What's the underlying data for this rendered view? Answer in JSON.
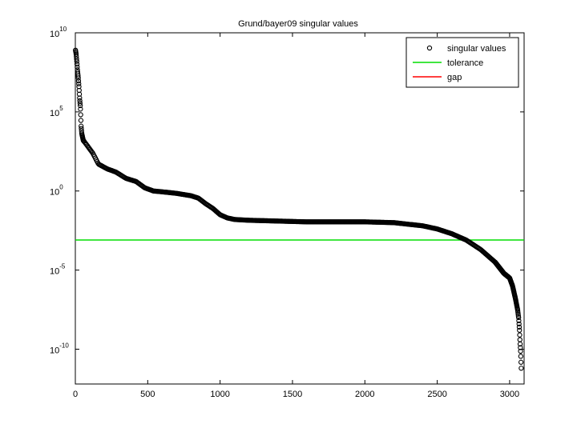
{
  "chart_data": {
    "type": "scatter",
    "title": "Grund/bayer09 singular values",
    "xlabel": "",
    "ylabel": "",
    "xlim": [
      0,
      3100
    ],
    "ylim_log10": [
      -12.2,
      10
    ],
    "y_scale": "log",
    "grid": false,
    "legend_placement": "top-right",
    "x_ticks": [
      0,
      500,
      1000,
      1500,
      2000,
      2500,
      3000
    ],
    "y_ticks": [
      {
        "base": "10",
        "exp": "10"
      },
      {
        "base": "10",
        "exp": "5"
      },
      {
        "base": "10",
        "exp": "0"
      },
      {
        "base": "10",
        "exp": "-5"
      },
      {
        "base": "10",
        "exp": "-10"
      }
    ],
    "y_tick_log10": [
      10,
      5,
      0,
      -5,
      -10
    ],
    "legend": [
      {
        "label": "singular values",
        "marker": "circle",
        "color": "#000000"
      },
      {
        "label": "tolerance",
        "marker": "line",
        "color": "#00dd00"
      },
      {
        "label": "gap",
        "marker": "line",
        "color": "#ff0000"
      }
    ],
    "tolerance_log10": -3.1,
    "singular_values_curve_log10": [
      [
        1,
        8.9
      ],
      [
        5,
        8.7
      ],
      [
        10,
        8.2
      ],
      [
        15,
        7.6
      ],
      [
        20,
        7.2
      ],
      [
        25,
        6.6
      ],
      [
        30,
        5.8
      ],
      [
        35,
        5.3
      ],
      [
        40,
        4.1
      ],
      [
        45,
        3.6
      ],
      [
        55,
        3.2
      ],
      [
        80,
        2.9
      ],
      [
        120,
        2.4
      ],
      [
        160,
        1.7
      ],
      [
        220,
        1.4
      ],
      [
        280,
        1.2
      ],
      [
        350,
        0.8
      ],
      [
        420,
        0.6
      ],
      [
        480,
        0.2
      ],
      [
        540,
        0.0
      ],
      [
        600,
        -0.05
      ],
      [
        700,
        -0.15
      ],
      [
        800,
        -0.3
      ],
      [
        850,
        -0.45
      ],
      [
        900,
        -0.8
      ],
      [
        950,
        -1.1
      ],
      [
        1000,
        -1.5
      ],
      [
        1050,
        -1.7
      ],
      [
        1100,
        -1.8
      ],
      [
        1200,
        -1.85
      ],
      [
        1400,
        -1.9
      ],
      [
        1600,
        -1.95
      ],
      [
        1800,
        -1.95
      ],
      [
        2000,
        -1.95
      ],
      [
        2200,
        -2.0
      ],
      [
        2400,
        -2.2
      ],
      [
        2500,
        -2.4
      ],
      [
        2600,
        -2.7
      ],
      [
        2700,
        -3.1
      ],
      [
        2800,
        -3.7
      ],
      [
        2900,
        -4.5
      ],
      [
        2960,
        -5.2
      ],
      [
        3000,
        -5.5
      ],
      [
        3020,
        -6.0
      ],
      [
        3040,
        -6.8
      ],
      [
        3055,
        -7.5
      ],
      [
        3062,
        -8.0
      ],
      [
        3068,
        -8.8
      ],
      [
        3072,
        -9.6
      ],
      [
        3076,
        -10.2
      ],
      [
        3080,
        -11.2
      ]
    ]
  }
}
